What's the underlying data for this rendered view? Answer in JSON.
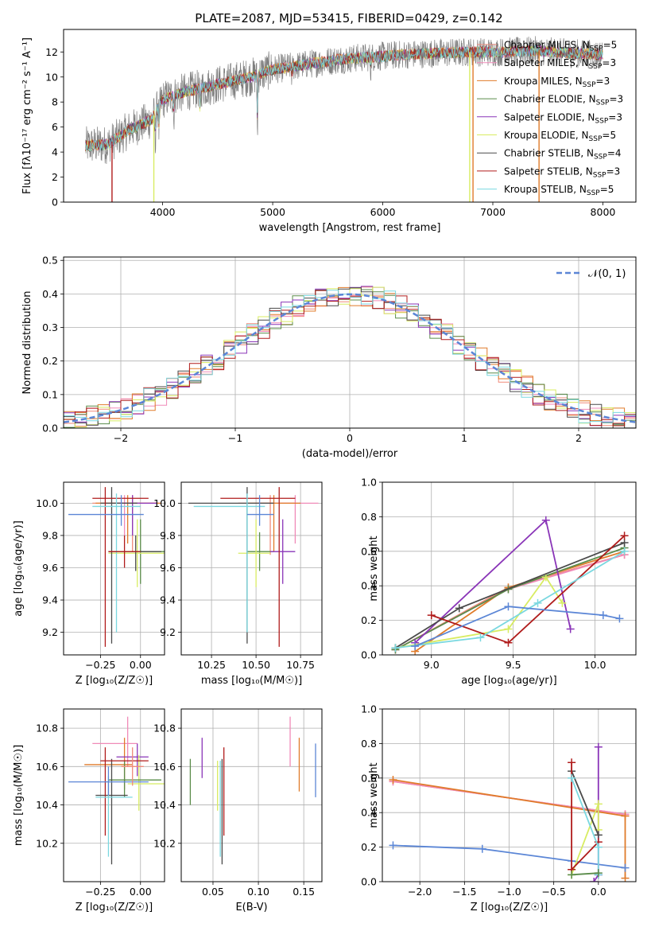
{
  "figure_title": "PLATE=2087, MJD=53415, FIBERID=0429, z=0.142",
  "colors": {
    "Chabrier MILES": "#f08a7a",
    "Salpeter MILES": "#f08ab8",
    "Kroupa MILES": "#e07b2a",
    "Chabrier ELODIE": "#5a8c4a",
    "Salpeter ELODIE": "#8a35b8",
    "Kroupa ELODIE": "#d8ec62",
    "Chabrier STELIB": "#4a4a4a",
    "Salpeter STELIB": "#b01c1c",
    "Kroupa STELIB": "#7ad8e0",
    "extra_blue": "#5b86d6",
    "data": "#7f7f7f"
  },
  "chart_data": [
    {
      "id": "spectrum",
      "type": "line",
      "xlabel": "wavelength [Angstrom, rest frame]",
      "ylabel": "Flux [fλ10⁻¹⁷ erg cm⁻² s⁻¹ A⁻¹]",
      "xlim": [
        3100,
        8300
      ],
      "ylim": [
        0,
        13.8
      ],
      "xticks": [
        4000,
        5000,
        6000,
        7000,
        8000
      ],
      "yticks": [
        0,
        2,
        4,
        6,
        8,
        10,
        12
      ],
      "legend_position": "upper-right",
      "legend": [
        {
          "name": "Chabrier MILES",
          "nssp": "5"
        },
        {
          "name": "Salpeter MILES",
          "nssp": "3"
        },
        {
          "name": "Kroupa MILES",
          "nssp": "3"
        },
        {
          "name": "Chabrier ELODIE",
          "nssp": "3"
        },
        {
          "name": "Salpeter ELODIE",
          "nssp": "3"
        },
        {
          "name": "Kroupa ELODIE",
          "nssp": "5"
        },
        {
          "name": "Chabrier STELIB",
          "nssp": "4"
        },
        {
          "name": "Salpeter STELIB",
          "nssp": "3"
        },
        {
          "name": "Kroupa STELIB",
          "nssp": "5"
        }
      ],
      "continuum": [
        [
          3300,
          4.5
        ],
        [
          3500,
          4.6
        ],
        [
          3700,
          5.8
        ],
        [
          3900,
          6.6
        ],
        [
          4000,
          8.2
        ],
        [
          4200,
          8.8
        ],
        [
          4500,
          9.4
        ],
        [
          4800,
          10.0
        ],
        [
          5000,
          10.6
        ],
        [
          5300,
          11.0
        ],
        [
          5600,
          11.4
        ],
        [
          5900,
          11.6
        ],
        [
          6200,
          11.8
        ],
        [
          6500,
          11.9
        ],
        [
          6800,
          12.0
        ],
        [
          7100,
          12.0
        ],
        [
          7400,
          12.1
        ],
        [
          7700,
          11.9
        ],
        [
          8000,
          11.8
        ]
      ],
      "model_edges": [
        [
          3540,
          "Salpeter STELIB"
        ],
        [
          3920,
          "Kroupa ELODIE"
        ],
        [
          6790,
          "Kroupa ELODIE"
        ],
        [
          6820,
          "Kroupa MILES"
        ],
        [
          7420,
          "Kroupa MILES"
        ]
      ]
    },
    {
      "id": "residual-histogram",
      "type": "line",
      "xlabel": "(data-model)/error",
      "ylabel": "Normed distribution",
      "xlim": [
        -2.5,
        2.5
      ],
      "ylim": [
        0,
        0.51
      ],
      "xticks": [
        -2,
        -1,
        0,
        1,
        2
      ],
      "yticks": [
        0.0,
        0.1,
        0.2,
        0.3,
        0.4,
        0.5
      ],
      "legend": "𝒩(0, 1)",
      "gaussian": {
        "mean": 0,
        "sigma": 1
      },
      "bin_width": 0.1
    },
    {
      "id": "age-vs-Z",
      "type": "scatter",
      "xlabel": "Z [log₁₀(Z/Z☉)]",
      "ylabel": "age  [log₁₀(age/yr)]",
      "xlim": [
        -0.48,
        0.15
      ],
      "ylim": [
        9.06,
        10.13
      ],
      "xticks": [
        -0.25,
        0.0
      ],
      "yticks": [
        9.2,
        9.4,
        9.6,
        9.8,
        10.0
      ],
      "errorbars": [
        {
          "model": "Chabrier MILES",
          "x": -0.05,
          "xl": -0.3,
          "xh": 0.1,
          "y": 10.0,
          "yl": 9.7,
          "yh": 10.05
        },
        {
          "model": "Salpeter MILES",
          "x": -0.1,
          "xl": -0.25,
          "xh": 0.12,
          "y": 10.0,
          "yl": 9.8,
          "yh": 10.05
        },
        {
          "model": "Kroupa MILES",
          "x": -0.08,
          "xl": -0.28,
          "xh": 0.13,
          "y": 10.0,
          "yl": 9.75,
          "yh": 10.05
        },
        {
          "model": "Chabrier ELODIE",
          "x": 0.0,
          "xl": -0.2,
          "xh": 0.15,
          "y": 9.7,
          "yl": 9.5,
          "yh": 9.9
        },
        {
          "model": "Salpeter ELODIE",
          "x": -0.05,
          "xl": -0.15,
          "xh": 0.1,
          "y": 10.0,
          "yl": 9.8,
          "yh": 10.05
        },
        {
          "model": "Kroupa ELODIE",
          "x": -0.02,
          "xl": -0.2,
          "xh": 0.15,
          "y": 9.69,
          "yl": 9.48,
          "yh": 9.9
        },
        {
          "model": "Chabrier STELIB",
          "x": -0.18,
          "xl": -0.25,
          "xh": -0.02,
          "y": 10.0,
          "yl": 9.13,
          "yh": 10.1
        },
        {
          "model": "Salpeter STELIB",
          "x": -0.22,
          "xl": -0.3,
          "xh": 0.05,
          "y": 10.03,
          "yl": 9.11,
          "yh": 10.1
        },
        {
          "model": "Kroupa STELIB",
          "x": -0.15,
          "xl": -0.3,
          "xh": 0.0,
          "y": 9.98,
          "yl": 9.2,
          "yh": 10.06
        },
        {
          "model": "extra_blue",
          "x": -0.12,
          "xl": -0.45,
          "xh": 0.02,
          "y": 9.93,
          "yl": 9.86,
          "yh": 10.05
        },
        {
          "model": "Chabrier STELIB",
          "x": -0.03,
          "xl": -0.2,
          "xh": 0.13,
          "y": 9.7,
          "yl": 9.58,
          "yh": 9.8
        },
        {
          "model": "Salpeter STELIB",
          "x": -0.1,
          "xl": -0.2,
          "xh": 0.0,
          "y": 9.7,
          "yl": 9.6,
          "yh": 9.8
        }
      ]
    },
    {
      "id": "age-vs-mass",
      "type": "scatter",
      "xlabel": "mass [log₁₀(M/M☉)]",
      "xlim": [
        10.08,
        10.87
      ],
      "ylim": [
        9.06,
        10.13
      ],
      "xticks": [
        10.25,
        10.5,
        10.75
      ],
      "yticks": [
        9.2,
        9.4,
        9.6,
        9.8,
        10.0
      ],
      "errorbars": [
        {
          "model": "Chabrier MILES",
          "x": 10.58,
          "xl": 10.4,
          "xh": 10.72,
          "y": 10.0,
          "yl": 9.68,
          "yh": 10.05
        },
        {
          "model": "Salpeter MILES",
          "x": 10.72,
          "xl": 10.5,
          "xh": 10.85,
          "y": 10.0,
          "yl": 9.75,
          "yh": 10.05
        },
        {
          "model": "Kroupa MILES",
          "x": 10.6,
          "xl": 10.45,
          "xh": 10.75,
          "y": 10.0,
          "yl": 9.7,
          "yh": 10.05
        },
        {
          "model": "Chabrier ELODIE",
          "x": 10.52,
          "xl": 10.45,
          "xh": 10.6,
          "y": 9.7,
          "yl": 9.58,
          "yh": 9.82
        },
        {
          "model": "Salpeter ELODIE",
          "x": 10.65,
          "xl": 10.58,
          "xh": 10.72,
          "y": 9.7,
          "yl": 9.5,
          "yh": 9.9
        },
        {
          "model": "Kroupa ELODIE",
          "x": 10.5,
          "xl": 10.4,
          "xh": 10.58,
          "y": 9.69,
          "yl": 9.48,
          "yh": 9.9
        },
        {
          "model": "Chabrier STELIB",
          "x": 10.45,
          "xl": 10.12,
          "xh": 10.6,
          "y": 10.0,
          "yl": 9.13,
          "yh": 10.1
        },
        {
          "model": "Salpeter STELIB",
          "x": 10.63,
          "xl": 10.3,
          "xh": 10.72,
          "y": 10.03,
          "yl": 9.11,
          "yh": 10.1
        },
        {
          "model": "Kroupa STELIB",
          "x": 10.45,
          "xl": 10.15,
          "xh": 10.55,
          "y": 9.98,
          "yl": 9.2,
          "yh": 10.06
        },
        {
          "model": "extra_blue",
          "x": 10.52,
          "xl": 10.45,
          "xh": 10.6,
          "y": 9.93,
          "yl": 9.86,
          "yh": 10.05
        }
      ]
    },
    {
      "id": "mass-weight-vs-age",
      "type": "line",
      "xlabel": "age  [log₁₀(age/yr)]",
      "ylabel": "mass weight",
      "xlim": [
        8.7,
        10.25
      ],
      "ylim": [
        0,
        1.0
      ],
      "xticks": [
        9.0,
        9.5,
        10.0
      ],
      "yticks": [
        0.0,
        0.2,
        0.4,
        0.6,
        0.8,
        1.0
      ],
      "series": [
        {
          "model": "Chabrier MILES",
          "x": [
            8.78,
            9.47,
            10.18
          ],
          "y": [
            0.03,
            0.39,
            0.58
          ]
        },
        {
          "model": "Salpeter MILES",
          "x": [
            8.78,
            9.47,
            10.18
          ],
          "y": [
            0.03,
            0.38,
            0.58
          ]
        },
        {
          "model": "Kroupa MILES",
          "x": [
            8.9,
            9.47,
            10.18
          ],
          "y": [
            0.02,
            0.39,
            0.6
          ]
        },
        {
          "model": "Chabrier ELODIE",
          "x": [
            8.78,
            9.47,
            10.18
          ],
          "y": [
            0.03,
            0.38,
            0.62
          ]
        },
        {
          "model": "Salpeter ELODIE",
          "x": [
            8.9,
            9.7,
            9.85
          ],
          "y": [
            0.07,
            0.78,
            0.15
          ]
        },
        {
          "model": "Kroupa ELODIE",
          "x": [
            8.78,
            9.47,
            9.7,
            9.8
          ],
          "y": [
            0.04,
            0.15,
            0.45,
            0.3
          ]
        },
        {
          "model": "Chabrier STELIB",
          "x": [
            8.78,
            9.17,
            10.18
          ],
          "y": [
            0.04,
            0.27,
            0.65
          ]
        },
        {
          "model": "Salpeter STELIB",
          "x": [
            9.0,
            9.47,
            10.18
          ],
          "y": [
            0.23,
            0.07,
            0.69
          ]
        },
        {
          "model": "Kroupa STELIB",
          "x": [
            8.78,
            9.3,
            9.65,
            10.18
          ],
          "y": [
            0.04,
            0.1,
            0.3,
            0.6
          ]
        },
        {
          "model": "extra_blue",
          "x": [
            8.9,
            9.47,
            10.05,
            10.15
          ],
          "y": [
            0.05,
            0.28,
            0.23,
            0.21
          ]
        }
      ]
    },
    {
      "id": "mass-vs-Z",
      "type": "scatter",
      "xlabel": "Z [log₁₀(Z/Z☉)]",
      "ylabel": "mass [log₁₀(M/M☉)]",
      "xlim": [
        -0.48,
        0.15
      ],
      "ylim": [
        10.0,
        10.9
      ],
      "xticks": [
        -0.25,
        0.0
      ],
      "yticks": [
        10.2,
        10.4,
        10.6,
        10.8
      ],
      "errorbars": [
        {
          "model": "Salpeter MILES",
          "x": -0.08,
          "xl": -0.3,
          "xh": -0.02,
          "y": 10.72,
          "yl": 10.6,
          "yh": 10.86
        },
        {
          "model": "Kroupa MILES",
          "x": -0.1,
          "xl": -0.35,
          "xh": -0.05,
          "y": 10.61,
          "yl": 10.48,
          "yh": 10.75
        },
        {
          "model": "Salpeter ELODIE",
          "x": -0.02,
          "xl": -0.15,
          "xh": 0.05,
          "y": 10.65,
          "yl": 10.55,
          "yh": 10.72
        },
        {
          "model": "Kroupa ELODIE",
          "x": -0.01,
          "xl": -0.08,
          "xh": 0.15,
          "y": 10.51,
          "yl": 10.37,
          "yh": 10.66
        },
        {
          "model": "Chabrier ELODIE",
          "x": -0.1,
          "xl": -0.2,
          "xh": 0.13,
          "y": 10.53,
          "yl": 10.44,
          "yh": 10.63
        },
        {
          "model": "Chabrier STELIB",
          "x": -0.18,
          "xl": -0.28,
          "xh": -0.08,
          "y": 10.45,
          "yl": 10.09,
          "yh": 10.64
        },
        {
          "model": "Salpeter STELIB",
          "x": -0.22,
          "xl": -0.25,
          "xh": 0.05,
          "y": 10.63,
          "yl": 10.24,
          "yh": 10.7
        },
        {
          "model": "Kroupa STELIB",
          "x": -0.2,
          "xl": -0.28,
          "xh": -0.05,
          "y": 10.44,
          "yl": 10.13,
          "yh": 10.55
        },
        {
          "model": "extra_blue",
          "x": -0.2,
          "xl": -0.45,
          "xh": 0.05,
          "y": 10.52,
          "yl": 10.45,
          "yh": 10.6
        },
        {
          "model": "Chabrier MILES",
          "x": -0.05,
          "xl": -0.12,
          "xh": 0.02,
          "y": 10.6,
          "yl": 10.5,
          "yh": 10.7
        }
      ]
    },
    {
      "id": "mass-vs-EBV",
      "type": "scatter",
      "xlabel": "E(B-V)",
      "xlim": [
        0.015,
        0.17
      ],
      "ylim": [
        10.0,
        10.9
      ],
      "xticks": [
        0.05,
        0.1,
        0.15
      ],
      "yticks": [
        10.2,
        10.4,
        10.6,
        10.8
      ],
      "vbars": [
        {
          "model": "Chabrier ELODIE",
          "x": 0.025,
          "yl": 10.4,
          "yh": 10.64
        },
        {
          "model": "Salpeter ELODIE",
          "x": 0.038,
          "yl": 10.54,
          "yh": 10.75
        },
        {
          "model": "Kroupa ELODIE",
          "x": 0.055,
          "yl": 10.37,
          "yh": 10.63
        },
        {
          "model": "Kroupa STELIB",
          "x": 0.058,
          "yl": 10.13,
          "yh": 10.63
        },
        {
          "model": "Chabrier STELIB",
          "x": 0.06,
          "yl": 10.09,
          "yh": 10.64
        },
        {
          "model": "Salpeter STELIB",
          "x": 0.062,
          "yl": 10.24,
          "yh": 10.7
        },
        {
          "model": "Salpeter MILES",
          "x": 0.135,
          "yl": 10.6,
          "yh": 10.86
        },
        {
          "model": "Kroupa MILES",
          "x": 0.145,
          "yl": 10.47,
          "yh": 10.75
        },
        {
          "model": "extra_blue",
          "x": 0.163,
          "yl": 10.44,
          "yh": 10.72
        }
      ]
    },
    {
      "id": "mass-weight-vs-Z",
      "type": "line",
      "xlabel": "Z [log₁₀(Z/Z☉)]",
      "ylabel": "mass weight",
      "xlim": [
        -2.42,
        0.42
      ],
      "ylim": [
        0,
        1.0
      ],
      "xticks": [
        -2.0,
        -1.5,
        -1.0,
        -0.5,
        0.0
      ],
      "yticks": [
        0.0,
        0.2,
        0.4,
        0.6,
        0.8,
        1.0
      ],
      "series": [
        {
          "model": "Chabrier MILES",
          "x": [
            -2.3,
            0.3
          ],
          "y": [
            0.58,
            0.39
          ]
        },
        {
          "model": "Salpeter MILES",
          "x": [
            -2.3,
            0.3
          ],
          "y": [
            0.58,
            0.39
          ]
        },
        {
          "model": "Kroupa MILES",
          "x": [
            -2.3,
            0.3,
            0.3
          ],
          "y": [
            0.59,
            0.38,
            0.02
          ]
        },
        {
          "model": "extra_blue",
          "x": [
            -2.3,
            -1.3,
            -0.3,
            0.3
          ],
          "y": [
            0.21,
            0.19,
            0.12,
            0.08
          ]
        },
        {
          "model": "Salpeter ELODIE",
          "x": [
            0.0,
            0.0,
            -0.05,
            0.0
          ],
          "y": [
            0.78,
            0.04,
            0.0,
            0.04
          ]
        },
        {
          "model": "Kroupa ELODIE",
          "x": [
            -0.3,
            0.0,
            0.0
          ],
          "y": [
            0.04,
            0.45,
            0.3
          ]
        },
        {
          "model": "Chabrier STELIB",
          "x": [
            -0.3,
            0.0
          ],
          "y": [
            0.64,
            0.27
          ]
        },
        {
          "model": "Salpeter STELIB",
          "x": [
            -0.3,
            -0.3,
            0.0
          ],
          "y": [
            0.69,
            0.07,
            0.23
          ]
        },
        {
          "model": "Kroupa STELIB",
          "x": [
            -0.3,
            0.0,
            0.0
          ],
          "y": [
            0.6,
            0.2,
            0.04
          ]
        },
        {
          "model": "Chabrier ELODIE",
          "x": [
            -0.3,
            0.0
          ],
          "y": [
            0.04,
            0.05
          ]
        }
      ]
    }
  ]
}
